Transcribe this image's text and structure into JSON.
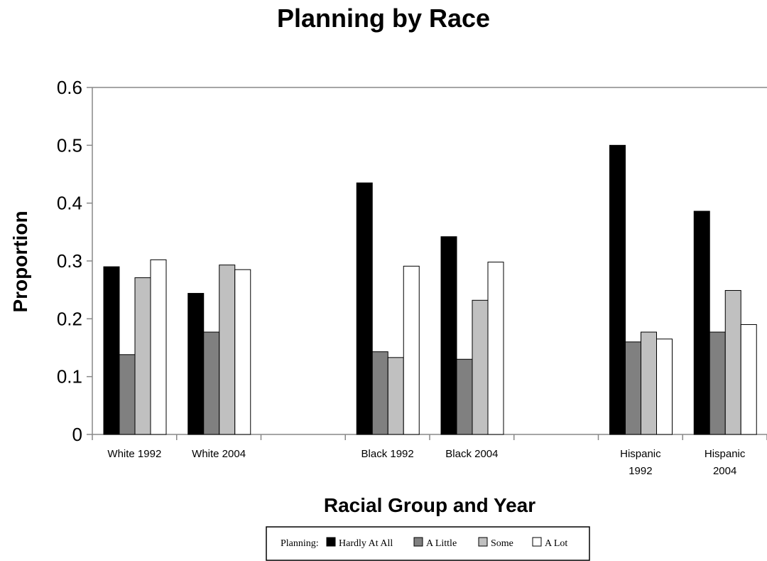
{
  "chart_data": {
    "type": "bar",
    "title": "Planning by Race",
    "xlabel": "Racial Group and Year",
    "ylabel": "Proportion",
    "ylim": [
      0,
      0.6
    ],
    "yticks": [
      "0",
      "0.1",
      "0.2",
      "0.3",
      "0.4",
      "0.5",
      "0.6"
    ],
    "grid": false,
    "legend": {
      "placement": "bottom",
      "prefix": "Planning:",
      "labels": [
        "Hardly At All",
        "A Little",
        "Some",
        "A Lot"
      ]
    },
    "categories": [
      [
        "White 1992"
      ],
      [
        "White 2004"
      ],
      [
        ""
      ],
      [
        "Black 1992"
      ],
      [
        "Black 2004"
      ],
      [
        ""
      ],
      [
        "Hispanic",
        "1992"
      ],
      [
        "Hispanic",
        "2004"
      ]
    ],
    "series": [
      {
        "name": "Hardly At All",
        "color": "#000000",
        "values": [
          0.29,
          0.244,
          null,
          0.435,
          0.342,
          null,
          0.5,
          0.386
        ]
      },
      {
        "name": "A Little",
        "color": "#808080",
        "values": [
          0.138,
          0.177,
          null,
          0.143,
          0.13,
          null,
          0.16,
          0.177
        ]
      },
      {
        "name": "Some",
        "color": "#c0c0c0",
        "values": [
          0.271,
          0.293,
          null,
          0.133,
          0.232,
          null,
          0.177,
          0.249
        ]
      },
      {
        "name": "A Lot",
        "color": "#ffffff",
        "values": [
          0.302,
          0.285,
          null,
          0.291,
          0.298,
          null,
          0.165,
          0.19
        ]
      }
    ]
  }
}
